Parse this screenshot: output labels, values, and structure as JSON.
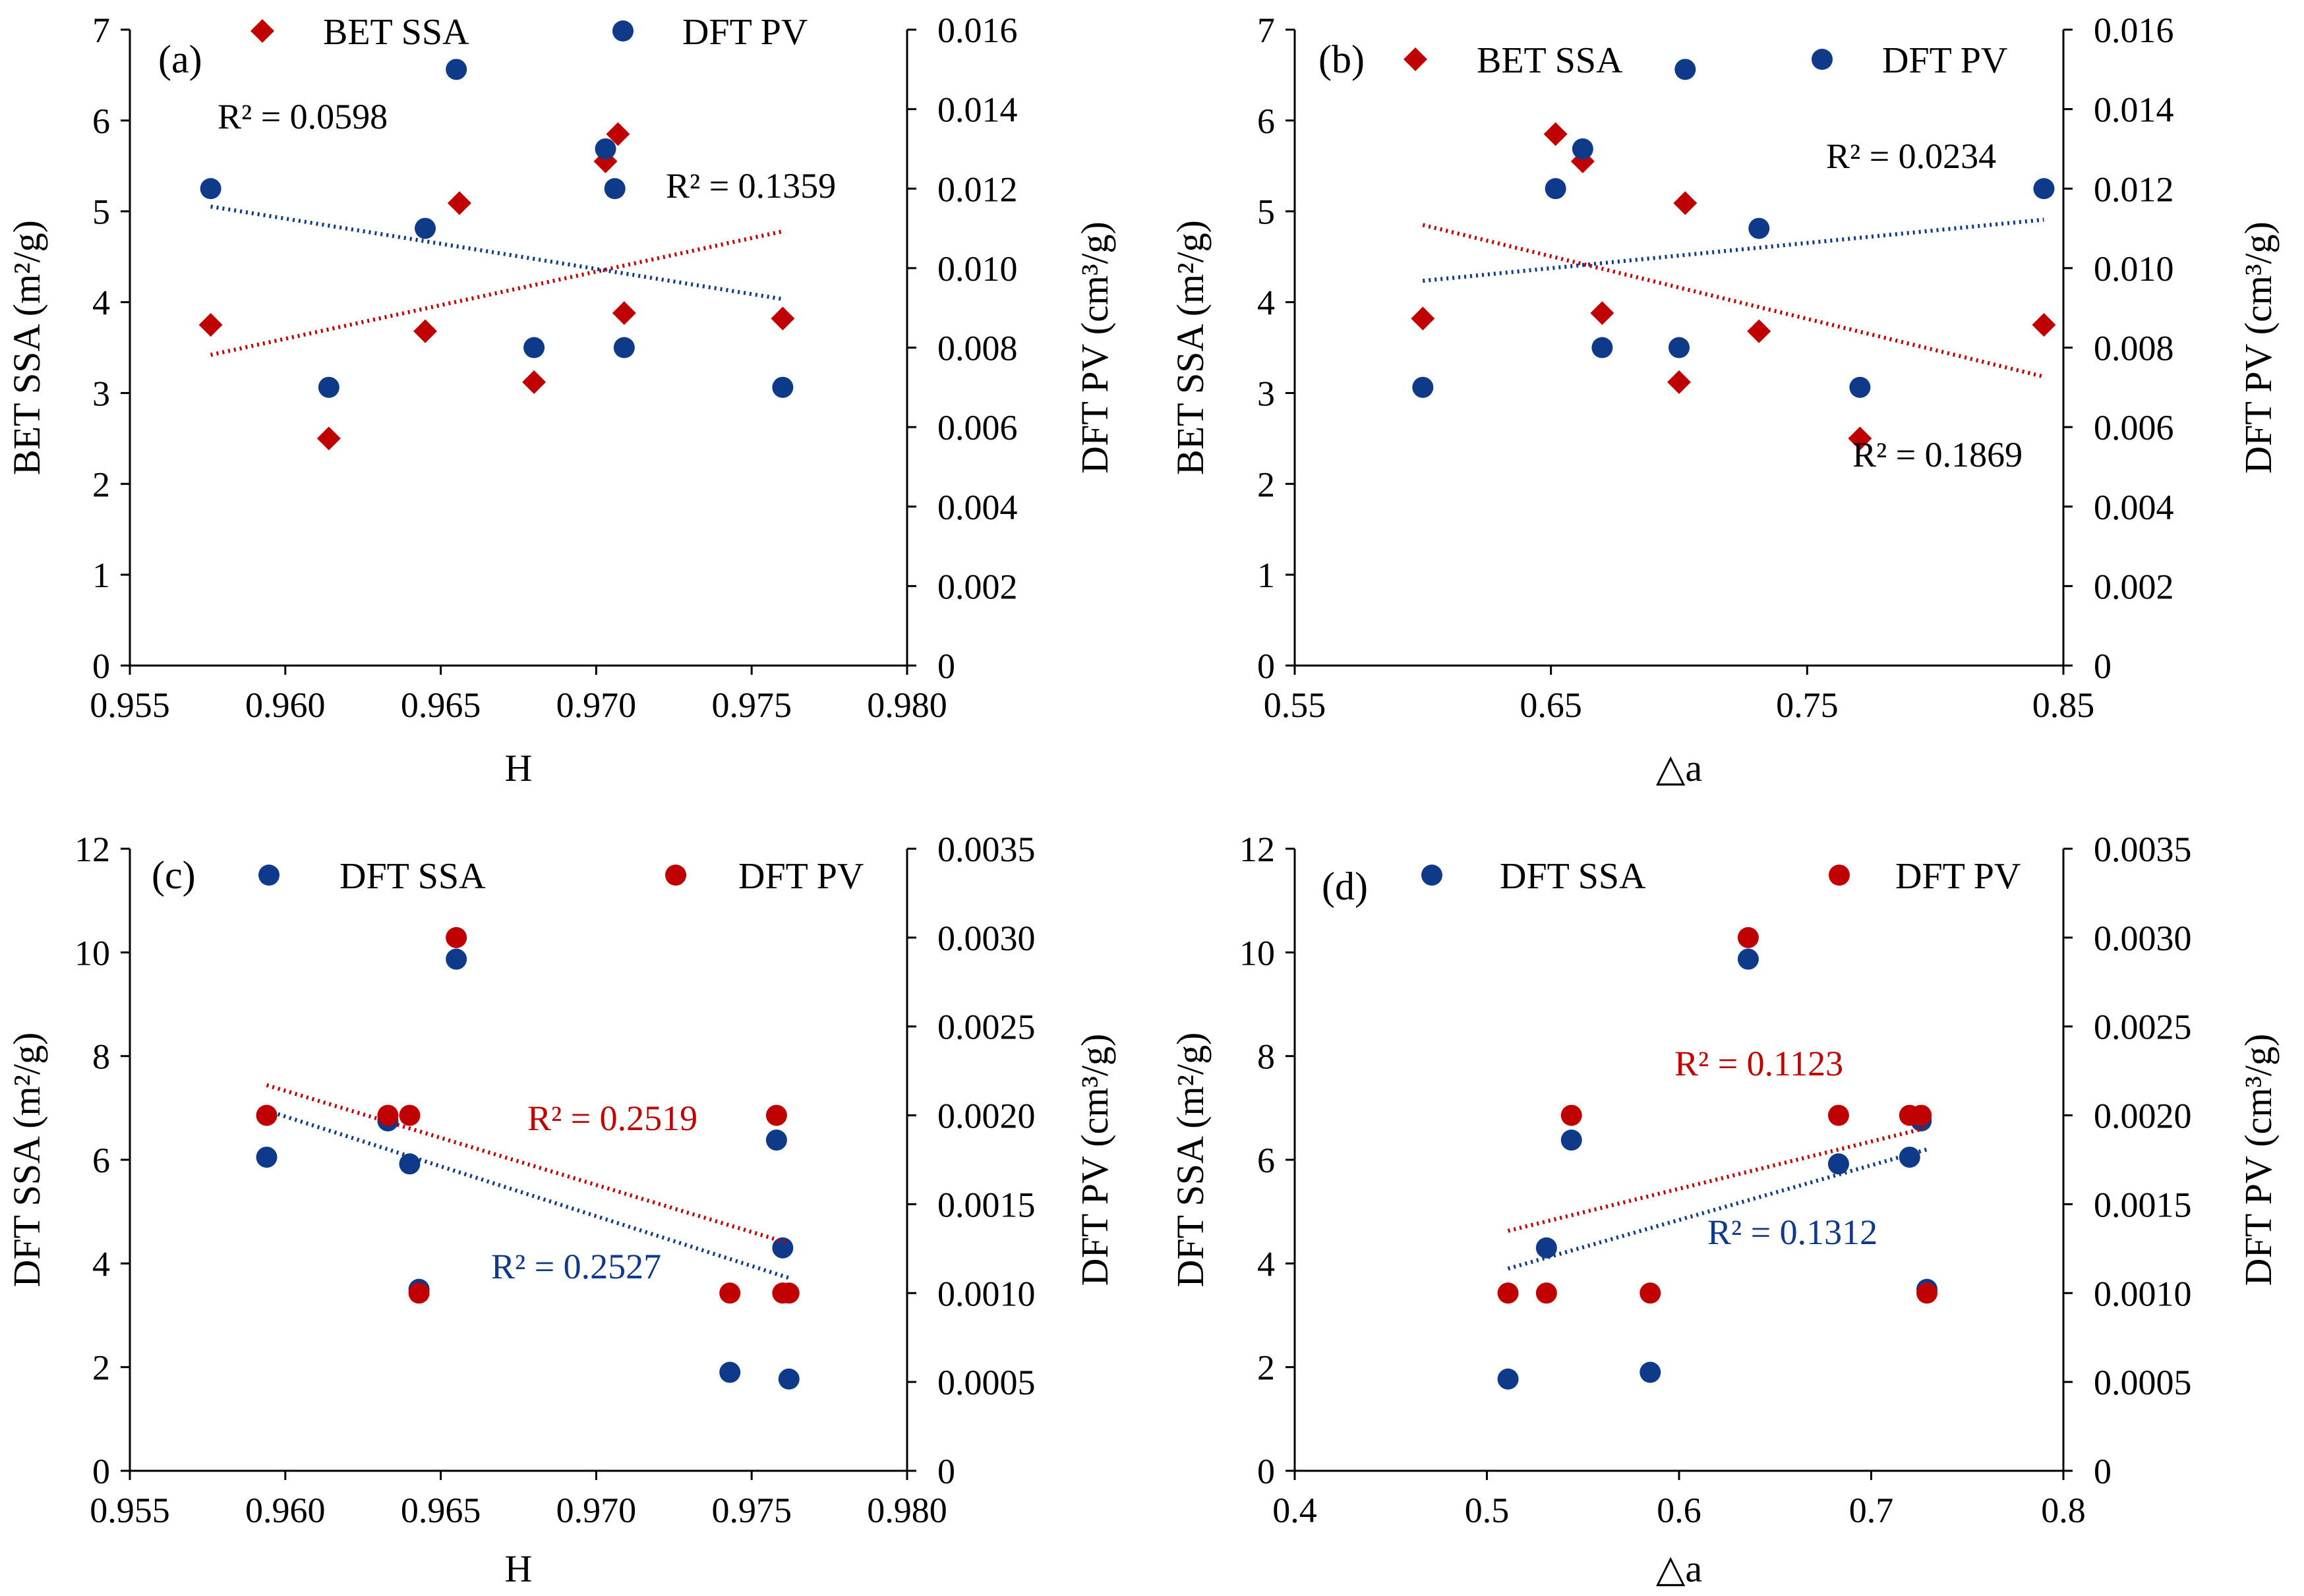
{
  "colors": {
    "red": "#C00000",
    "blue": "#0F3A8A",
    "axis": "#000000"
  },
  "chart_data": [
    {
      "type": "scatter",
      "panel_label": "(a)",
      "xlabel": "H",
      "ylabel": "BET SSA (m²/g)",
      "y2label": "DFT PV (cm³/g)",
      "xlim": [
        0.955,
        0.98
      ],
      "ylim": [
        0,
        7
      ],
      "y2lim": [
        0,
        0.016
      ],
      "x_ticks": [
        "0.955",
        "0.960",
        "0.965",
        "0.970",
        "0.975",
        "0.980"
      ],
      "y_ticks": [
        "0",
        "1",
        "2",
        "3",
        "4",
        "5",
        "6",
        "7"
      ],
      "y2_ticks": [
        "0",
        "0.002",
        "0.004",
        "0.006",
        "0.008",
        "0.010",
        "0.012",
        "0.014",
        "0.016"
      ],
      "series": [
        {
          "name": "BET SSA",
          "axis": "left",
          "marker": "diamond",
          "color": "red",
          "points": [
            [
              0.9576,
              3.75
            ],
            [
              0.9614,
              2.5
            ],
            [
              0.9645,
              3.68
            ],
            [
              0.9656,
              5.09
            ],
            [
              0.968,
              3.12
            ],
            [
              0.9703,
              5.55
            ],
            [
              0.9707,
              5.85
            ],
            [
              0.9709,
              3.88
            ],
            [
              0.976,
              3.82
            ]
          ],
          "trend": {
            "x": [
              0.9576,
              0.976
            ],
            "y": [
              3.42,
              4.78
            ]
          },
          "r2": "R² = 0.1359"
        },
        {
          "name": "DFT PV",
          "axis": "right",
          "marker": "circle",
          "color": "blue",
          "points": [
            [
              0.9576,
              0.012
            ],
            [
              0.9614,
              0.007
            ],
            [
              0.9645,
              0.011
            ],
            [
              0.9655,
              0.015
            ],
            [
              0.968,
              0.008
            ],
            [
              0.9703,
              0.013
            ],
            [
              0.9706,
              0.012
            ],
            [
              0.9709,
              0.008
            ],
            [
              0.976,
              0.007
            ]
          ],
          "trend": {
            "x": [
              0.9576,
              0.976
            ],
            "y": [
              0.01155,
              0.00922
            ]
          },
          "r2": "R² = 0.0598"
        }
      ]
    },
    {
      "type": "scatter",
      "panel_label": "(b)",
      "xlabel": "△a",
      "ylabel": "BET SSA (m²/g)",
      "y2label": "DFT PV (cm³/g)",
      "xlim": [
        0.55,
        0.85
      ],
      "ylim": [
        0,
        7
      ],
      "y2lim": [
        0,
        0.016
      ],
      "x_ticks": [
        "0.55",
        "0.65",
        "0.75",
        "0.85"
      ],
      "y_ticks": [
        "0",
        "1",
        "2",
        "3",
        "4",
        "5",
        "6",
        "7"
      ],
      "y2_ticks": [
        "0",
        "0.002",
        "0.004",
        "0.006",
        "0.008",
        "0.010",
        "0.012",
        "0.014",
        "0.016"
      ],
      "series": [
        {
          "name": "BET SSA",
          "axis": "left",
          "marker": "diamond",
          "color": "red",
          "points": [
            [
              0.6,
              3.82
            ],
            [
              0.6518,
              5.85
            ],
            [
              0.6624,
              5.55
            ],
            [
              0.67,
              3.88
            ],
            [
              0.7,
              3.12
            ],
            [
              0.7024,
              5.09
            ],
            [
              0.7312,
              3.68
            ],
            [
              0.7706,
              2.5
            ],
            [
              0.8424,
              3.75
            ]
          ],
          "trend": {
            "x": [
              0.6,
              0.8424
            ],
            "y": [
              4.85,
              3.18
            ]
          },
          "r2": "R² = 0.1869"
        },
        {
          "name": "DFT PV",
          "axis": "right",
          "marker": "circle",
          "color": "blue",
          "points": [
            [
              0.6,
              0.007
            ],
            [
              0.6518,
              0.012
            ],
            [
              0.6624,
              0.013
            ],
            [
              0.67,
              0.008
            ],
            [
              0.7,
              0.008
            ],
            [
              0.7024,
              0.015
            ],
            [
              0.7312,
              0.011
            ],
            [
              0.7706,
              0.007
            ],
            [
              0.8424,
              0.012
            ]
          ],
          "trend": {
            "x": [
              0.6,
              0.8424
            ],
            "y": [
              0.00968,
              0.01122
            ]
          },
          "r2": "R² = 0.0234"
        }
      ]
    },
    {
      "type": "scatter",
      "panel_label": "(c)",
      "xlabel": "H",
      "ylabel": "DFT SSA (m²/g)",
      "y2label": "DFT PV (cm³/g)",
      "xlim": [
        0.955,
        0.98
      ],
      "ylim": [
        0,
        12
      ],
      "y2lim": [
        0,
        0.0035
      ],
      "x_ticks": [
        "0.955",
        "0.960",
        "0.965",
        "0.970",
        "0.975",
        "0.980"
      ],
      "y_ticks": [
        "0",
        "2",
        "4",
        "6",
        "8",
        "10",
        "12"
      ],
      "y2_ticks": [
        "0",
        "0.0005",
        "0.0010",
        "0.0015",
        "0.0020",
        "0.0025",
        "0.0030",
        "0.0035"
      ],
      "series": [
        {
          "name": "DFT SSA",
          "axis": "left",
          "marker": "circle",
          "color": "blue",
          "points": [
            [
              0.9594,
              6.05
            ],
            [
              0.9633,
              6.75
            ],
            [
              0.964,
              5.92
            ],
            [
              0.9643,
              3.5
            ],
            [
              0.9655,
              9.87
            ],
            [
              0.9743,
              1.9
            ],
            [
              0.9758,
              6.38
            ],
            [
              0.976,
              4.3
            ],
            [
              0.9762,
              1.77
            ]
          ],
          "trend": {
            "x": [
              0.9594,
              0.9762
            ],
            "y": [
              6.95,
              3.72
            ]
          },
          "r2": "R² = 0.2527"
        },
        {
          "name": "DFT PV",
          "axis": "right",
          "marker": "circle",
          "color": "red",
          "points": [
            [
              0.9594,
              0.002
            ],
            [
              0.9633,
              0.002
            ],
            [
              0.964,
              0.002
            ],
            [
              0.9643,
              0.001
            ],
            [
              0.9655,
              0.003
            ],
            [
              0.9743,
              0.001
            ],
            [
              0.9758,
              0.002
            ],
            [
              0.976,
              0.001
            ],
            [
              0.9762,
              0.001
            ]
          ],
          "trend": {
            "x": [
              0.9594,
              0.9762
            ],
            "y": [
              0.00217,
              0.00128
            ]
          },
          "r2": "R² = 0.2519"
        }
      ]
    },
    {
      "type": "scatter",
      "panel_label": "(d)",
      "xlabel": "△a",
      "ylabel": "DFT SSA (m²/g)",
      "y2label": "DFT PV (cm³/g)",
      "xlim": [
        0.4,
        0.8
      ],
      "ylim": [
        0,
        12
      ],
      "y2lim": [
        0,
        0.0035
      ],
      "x_ticks": [
        "0.4",
        "0.5",
        "0.6",
        "0.7",
        "0.8"
      ],
      "y_ticks": [
        "0",
        "2",
        "4",
        "6",
        "8",
        "10",
        "12"
      ],
      "y2_ticks": [
        "0",
        "0.0005",
        "0.0010",
        "0.0015",
        "0.0020",
        "0.0025",
        "0.0030",
        "0.0035"
      ],
      "series": [
        {
          "name": "DFT SSA",
          "axis": "left",
          "marker": "circle",
          "color": "blue",
          "points": [
            [
              0.511,
              1.77
            ],
            [
              0.531,
              4.3
            ],
            [
              0.544,
              6.38
            ],
            [
              0.585,
              1.9
            ],
            [
              0.636,
              9.87
            ],
            [
              0.683,
              5.92
            ],
            [
              0.72,
              6.05
            ],
            [
              0.726,
              6.75
            ],
            [
              0.729,
              3.5
            ]
          ],
          "trend": {
            "x": [
              0.511,
              0.729
            ],
            "y": [
              3.9,
              6.2
            ]
          },
          "r2": "R² = 0.1312"
        },
        {
          "name": "DFT PV",
          "axis": "right",
          "marker": "circle",
          "color": "red",
          "points": [
            [
              0.511,
              0.001
            ],
            [
              0.531,
              0.001
            ],
            [
              0.544,
              0.002
            ],
            [
              0.585,
              0.001
            ],
            [
              0.636,
              0.003
            ],
            [
              0.683,
              0.002
            ],
            [
              0.72,
              0.002
            ],
            [
              0.726,
              0.002
            ],
            [
              0.729,
              0.001
            ]
          ],
          "trend": {
            "x": [
              0.511,
              0.729
            ],
            "y": [
              0.00135,
              0.00193
            ]
          },
          "r2": "R² = 0.1123"
        }
      ]
    }
  ]
}
